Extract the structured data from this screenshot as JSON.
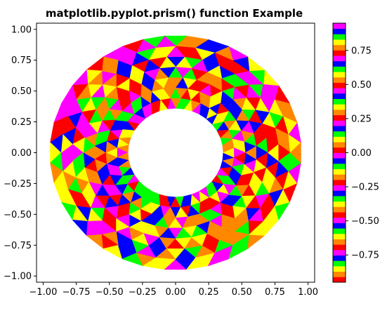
{
  "chart_data": {
    "type": "heatmap",
    "subtype": "tripcolor",
    "title": "matplotlib.pyplot.prism() function Example",
    "colormap": "prism",
    "xlim": [
      -1.05,
      1.05
    ],
    "ylim": [
      -1.05,
      1.05
    ],
    "x_ticks": [
      -1.0,
      -0.75,
      -0.5,
      -0.25,
      0.0,
      0.25,
      0.5,
      0.75,
      1.0
    ],
    "x_tick_labels": [
      "−1.00",
      "−0.75",
      "−0.50",
      "−0.25",
      "0.00",
      "0.25",
      "0.50",
      "0.75",
      "1.00"
    ],
    "y_ticks": [
      -1.0,
      -0.75,
      -0.5,
      -0.25,
      0.0,
      0.25,
      0.5,
      0.75,
      1.0
    ],
    "y_tick_labels": [
      "−1.00",
      "−0.75",
      "−0.50",
      "−0.25",
      "0.00",
      "0.25",
      "0.50",
      "0.75",
      "1.00"
    ],
    "mesh": {
      "inner_radius": 0.36,
      "outer_radius": 0.95,
      "n_radii": 8,
      "n_angles": 36
    },
    "colorbar": {
      "range": [
        -0.95,
        0.95
      ],
      "ticks": [
        -0.75,
        -0.5,
        -0.25,
        0.0,
        0.25,
        0.5,
        0.75
      ],
      "tick_labels": [
        "−0.75",
        "−0.50",
        "−0.25",
        "0.00",
        "0.25",
        "0.50",
        "0.75"
      ]
    },
    "grid": false,
    "legend": "none"
  }
}
